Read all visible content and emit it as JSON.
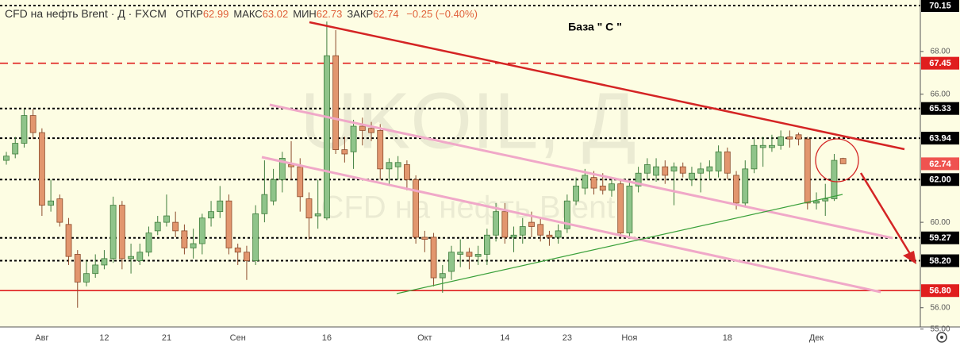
{
  "header": {
    "symbol": "CFD на нефть Brent · Д · FXCM",
    "stats": [
      {
        "label": "ОТКР",
        "value": 62.99
      },
      {
        "label": "МАКС",
        "value": 63.02
      },
      {
        "label": "МИН",
        "value": 62.73
      },
      {
        "label": "ЗАКР",
        "value": 62.74
      }
    ],
    "change": "−0.25 (−0.40%)"
  },
  "watermark": {
    "symbol": "UKOIL, Д",
    "name": "CFD на нефть Brent"
  },
  "annotation": "База \" С \"",
  "chart_data": {
    "type": "candlestick",
    "categories": [
      null,
      null,
      null,
      null,
      "Авг",
      null,
      null,
      null,
      null,
      null,
      null,
      "12",
      null,
      null,
      null,
      null,
      null,
      null,
      "21",
      null,
      null,
      null,
      null,
      null,
      null,
      null,
      "Сен",
      null,
      null,
      null,
      null,
      null,
      null,
      null,
      null,
      null,
      "16",
      null,
      null,
      null,
      null,
      null,
      null,
      null,
      null,
      null,
      null,
      "Окт",
      null,
      null,
      null,
      null,
      null,
      null,
      null,
      null,
      "14",
      null,
      null,
      null,
      null,
      null,
      null,
      "23",
      null,
      null,
      null,
      null,
      null,
      null,
      "Ноя",
      null,
      null,
      null,
      null,
      null,
      null,
      null,
      null,
      null,
      null,
      "18",
      null,
      null,
      null,
      null,
      null,
      null,
      null,
      null,
      null,
      "Дек",
      null,
      null,
      null
    ],
    "open": [
      62.9,
      63.2,
      63.7,
      65.0,
      64.2,
      60.8,
      61.1,
      59.9,
      58.5,
      57.2,
      57.6,
      58.0,
      58.3,
      60.8,
      58.3,
      58.2,
      58.6,
      59.6,
      60.0,
      60.0,
      59.6,
      58.8,
      59.0,
      60.2,
      60.5,
      61.0,
      58.8,
      58.6,
      58.2,
      60.4,
      61.0,
      62.0,
      62.7,
      62.6,
      61.1,
      60.3,
      60.2,
      67.8,
      63.4,
      63.3,
      64.5,
      64.4,
      64.3,
      62.5,
      62.6,
      62.7,
      62.0,
      59.3,
      59.3,
      57.4,
      57.7,
      58.5,
      58.6,
      58.4,
      58.5,
      59.4,
      60.5,
      59.3,
      59.4,
      60.0,
      59.9,
      59.4,
      59.3,
      59.7,
      61.0,
      61.6,
      62.1,
      61.7,
      61.5,
      61.8,
      59.5,
      61.7,
      62.3,
      62.2,
      62.6,
      62.4,
      62.6,
      62.0,
      62.3,
      62.4,
      62.4,
      63.3,
      62.2,
      60.9,
      62.5,
      63.5,
      63.5,
      63.6,
      64.0,
      64.1,
      63.9,
      60.9,
      61.0,
      61.1,
      62.99
    ],
    "high": [
      63.3,
      64.0,
      65.3,
      65.3,
      64.4,
      62.0,
      61.3,
      60.2,
      58.7,
      58.2,
      58.5,
      58.7,
      61.2,
      61.0,
      59.0,
      59.0,
      59.8,
      60.3,
      61.3,
      60.5,
      59.9,
      59.7,
      60.4,
      61.0,
      61.7,
      61.3,
      59.0,
      58.9,
      60.8,
      62.9,
      62.5,
      63.3,
      63.8,
      63.0,
      61.4,
      62.0,
      69.4,
      69.0,
      64.0,
      64.8,
      64.9,
      64.7,
      64.6,
      63.0,
      63.1,
      62.9,
      62.2,
      59.6,
      59.5,
      58.0,
      58.9,
      59.2,
      58.8,
      58.9,
      59.7,
      60.9,
      60.9,
      59.8,
      60.2,
      60.5,
      60.2,
      59.6,
      59.9,
      61.3,
      62.1,
      62.5,
      62.4,
      62.3,
      62.1,
      62.0,
      61.9,
      62.6,
      63.0,
      63.0,
      62.9,
      62.8,
      62.8,
      62.6,
      62.8,
      62.9,
      63.6,
      63.5,
      62.4,
      62.9,
      63.9,
      64.0,
      64.1,
      64.3,
      64.3,
      64.2,
      64.0,
      61.4,
      61.8,
      63.2,
      63.02
    ],
    "low": [
      62.7,
      63.0,
      63.5,
      63.9,
      60.3,
      60.5,
      59.8,
      58.0,
      56.0,
      57.0,
      57.4,
      57.8,
      58.1,
      57.8,
      57.6,
      58.0,
      58.4,
      59.4,
      59.8,
      59.3,
      58.5,
      58.3,
      58.5,
      59.8,
      60.2,
      58.5,
      58.0,
      57.3,
      58.0,
      60.0,
      60.8,
      61.4,
      62.0,
      60.5,
      59.2,
      59.7,
      60.1,
      63.2,
      62.8,
      62.5,
      63.6,
      63.8,
      62.0,
      61.7,
      62.0,
      61.5,
      59.0,
      58.6,
      57.0,
      56.7,
      57.3,
      57.9,
      57.8,
      58.0,
      58.0,
      59.1,
      59.0,
      58.6,
      59.0,
      59.3,
      59.1,
      58.9,
      59.0,
      59.5,
      60.8,
      61.3,
      61.3,
      61.3,
      61.2,
      59.3,
      59.3,
      61.4,
      62.0,
      61.9,
      61.8,
      60.8,
      62.1,
      61.7,
      61.4,
      62.0,
      62.1,
      62.0,
      60.6,
      60.7,
      62.3,
      62.6,
      63.3,
      63.4,
      63.5,
      63.6,
      60.6,
      60.6,
      60.3,
      61.0,
      62.73
    ],
    "close": [
      63.1,
      63.7,
      65.0,
      64.2,
      60.8,
      61.0,
      60.0,
      58.4,
      57.2,
      57.6,
      58.0,
      58.3,
      60.8,
      58.3,
      58.4,
      58.6,
      59.5,
      60.0,
      60.3,
      59.6,
      58.8,
      59.0,
      60.2,
      60.5,
      61.0,
      58.8,
      58.6,
      58.2,
      60.4,
      61.3,
      62.0,
      63.0,
      62.6,
      61.2,
      60.2,
      60.4,
      67.8,
      63.4,
      63.2,
      64.5,
      64.3,
      64.2,
      62.5,
      62.8,
      62.8,
      62.0,
      59.3,
      59.2,
      57.4,
      57.6,
      58.6,
      58.6,
      58.4,
      58.5,
      59.4,
      60.5,
      59.3,
      59.4,
      59.8,
      59.8,
      59.4,
      59.3,
      59.6,
      61.0,
      61.7,
      62.2,
      61.6,
      61.5,
      61.8,
      59.5,
      61.7,
      62.3,
      62.7,
      62.6,
      62.2,
      62.6,
      62.3,
      62.3,
      62.5,
      62.6,
      63.3,
      62.3,
      60.9,
      62.5,
      63.6,
      63.6,
      63.6,
      64.0,
      63.9,
      63.9,
      60.9,
      61.0,
      61.1,
      62.9,
      62.74
    ],
    "up_color": "#8fc48a",
    "up_border": "#3f7d3c",
    "down_color": "#e2966e",
    "down_border": "#8c4b2c",
    "ylim": [
      54.95,
      70.41
    ],
    "yticks": [
      {
        "value": 55,
        "label": "55.00"
      },
      {
        "value": 56,
        "label": "56.00"
      },
      {
        "value": 60,
        "label": "60.00"
      },
      {
        "value": 66,
        "label": "66.00"
      },
      {
        "value": 68,
        "label": "68.00"
      }
    ],
    "levels": [
      {
        "value": 70.15,
        "label": "70.15",
        "color": "#000000",
        "style": "dotted"
      },
      {
        "value": 67.45,
        "label": "67.45",
        "color": "#e01e1e",
        "style": "dashed"
      },
      {
        "value": 65.33,
        "label": "65.33",
        "color": "#000000",
        "style": "dotted"
      },
      {
        "value": 63.94,
        "label": "63.94",
        "color": "#000000",
        "style": "dotted"
      },
      {
        "value": 62,
        "label": "62.00",
        "color": "#000000",
        "style": "dotted"
      },
      {
        "value": 59.27,
        "label": "59.27",
        "color": "#000000",
        "style": "dotted"
      },
      {
        "value": 58.2,
        "label": "58.20",
        "color": "#000000",
        "style": "dotted"
      },
      {
        "value": 56.8,
        "label": "56.80",
        "color": "#e01e1e",
        "style": "solid"
      }
    ],
    "price_marker_color": "#ef5350"
  }
}
